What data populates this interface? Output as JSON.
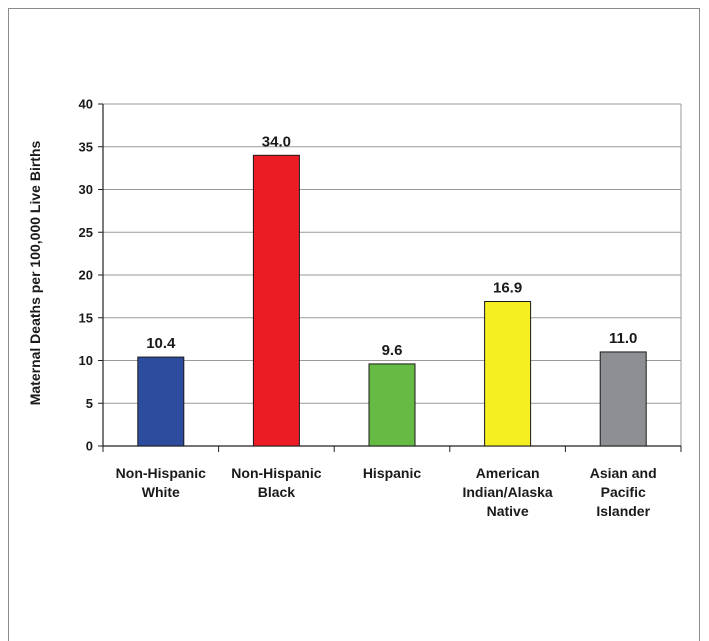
{
  "chart_data": {
    "type": "bar",
    "title": "",
    "xlabel": "",
    "ylabel": "Maternal Deaths per 100,000 Live Births",
    "ylim": [
      0,
      40
    ],
    "yticks": [
      0,
      5,
      10,
      15,
      20,
      25,
      30,
      35,
      40
    ],
    "grid": true,
    "legend": "none",
    "categories": [
      [
        "Non-Hispanic",
        "White"
      ],
      [
        "Non-Hispanic",
        "Black"
      ],
      [
        "Hispanic"
      ],
      [
        "American",
        "Indian/Alaska",
        "Native"
      ],
      [
        "Asian and",
        "Pacific",
        "Islander"
      ]
    ],
    "values": [
      10.4,
      34.0,
      9.6,
      16.9,
      11.0
    ],
    "data_labels": [
      "10.4",
      "34.0",
      "9.6",
      "16.9",
      "11.0"
    ],
    "colors": [
      "#2e4c9e",
      "#ec1c24",
      "#66bb45",
      "#f5ef22",
      "#8d8f93"
    ]
  }
}
